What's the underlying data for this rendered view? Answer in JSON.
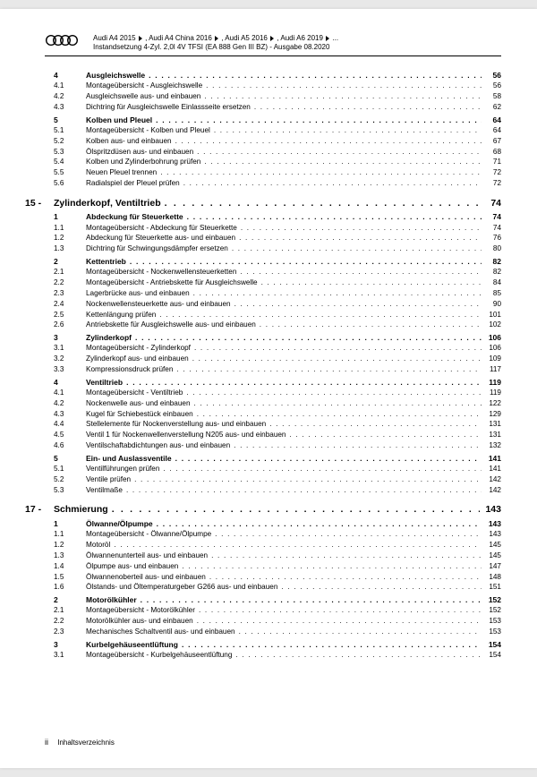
{
  "header": {
    "line1_parts": [
      "Audi A4 2015",
      "Audi A4 China 2016",
      "Audi A5 2016",
      "Audi A6 2019",
      "..."
    ],
    "line2": "Instandsetzung 4-Zyl. 2,0l 4V TFSI (EA 888 Gen III BZ) - Ausgabe 08.2020"
  },
  "entries": [
    {
      "lvl": "section",
      "num": "4",
      "title": "Ausgleichswelle",
      "pg": "56"
    },
    {
      "lvl": "sub",
      "num": "4.1",
      "title": "Montageübersicht - Ausgleichswelle",
      "pg": "56"
    },
    {
      "lvl": "sub",
      "num": "4.2",
      "title": "Ausgleichswelle aus- und einbauen",
      "pg": "58"
    },
    {
      "lvl": "sub",
      "num": "4.3",
      "title": "Dichtring für Ausgleichswelle Einlassseite ersetzen",
      "pg": "62"
    },
    {
      "lvl": "section",
      "num": "5",
      "title": "Kolben und Pleuel",
      "pg": "64"
    },
    {
      "lvl": "sub",
      "num": "5.1",
      "title": "Montageübersicht - Kolben und Pleuel",
      "pg": "64"
    },
    {
      "lvl": "sub",
      "num": "5.2",
      "title": "Kolben aus- und einbauen",
      "pg": "67"
    },
    {
      "lvl": "sub",
      "num": "5.3",
      "title": "Ölspritzdüsen aus- und einbauen",
      "pg": "68"
    },
    {
      "lvl": "sub",
      "num": "5.4",
      "title": "Kolben und Zylinderbohrung prüfen",
      "pg": "71"
    },
    {
      "lvl": "sub",
      "num": "5.5",
      "title": "Neuen Pleuel trennen",
      "pg": "72"
    },
    {
      "lvl": "sub",
      "num": "5.6",
      "title": "Radialspiel der Pleuel prüfen",
      "pg": "72"
    },
    {
      "lvl": "chapter",
      "num": "15 -",
      "title": "Zylinderkopf, Ventiltrieb",
      "pg": "74"
    },
    {
      "lvl": "section",
      "num": "1",
      "title": "Abdeckung für Steuerkette",
      "pg": "74"
    },
    {
      "lvl": "sub",
      "num": "1.1",
      "title": "Montageübersicht - Abdeckung für Steuerkette",
      "pg": "74"
    },
    {
      "lvl": "sub",
      "num": "1.2",
      "title": "Abdeckung für Steuerkette aus- und einbauen",
      "pg": "76"
    },
    {
      "lvl": "sub",
      "num": "1.3",
      "title": "Dichtring für Schwingungsdämpfer ersetzen",
      "pg": "80"
    },
    {
      "lvl": "section",
      "num": "2",
      "title": "Kettentrieb",
      "pg": "82"
    },
    {
      "lvl": "sub",
      "num": "2.1",
      "title": "Montageübersicht - Nockenwellensteuerketten",
      "pg": "82"
    },
    {
      "lvl": "sub",
      "num": "2.2",
      "title": "Montageübersicht - Antriebskette für Ausgleichswelle",
      "pg": "84"
    },
    {
      "lvl": "sub",
      "num": "2.3",
      "title": "Lagerbrücke aus- und einbauen",
      "pg": "85"
    },
    {
      "lvl": "sub",
      "num": "2.4",
      "title": "Nockenwellensteuerkette aus- und einbauen",
      "pg": "90"
    },
    {
      "lvl": "sub",
      "num": "2.5",
      "title": "Kettenlängung prüfen",
      "pg": "101"
    },
    {
      "lvl": "sub",
      "num": "2.6",
      "title": "Antriebskette für Ausgleichswelle aus- und einbauen",
      "pg": "102"
    },
    {
      "lvl": "section",
      "num": "3",
      "title": "Zylinderkopf",
      "pg": "106"
    },
    {
      "lvl": "sub",
      "num": "3.1",
      "title": "Montageübersicht - Zylinderkopf",
      "pg": "106"
    },
    {
      "lvl": "sub",
      "num": "3.2",
      "title": "Zylinderkopf aus- und einbauen",
      "pg": "109"
    },
    {
      "lvl": "sub",
      "num": "3.3",
      "title": "Kompressionsdruck prüfen",
      "pg": "117"
    },
    {
      "lvl": "section",
      "num": "4",
      "title": "Ventiltrieb",
      "pg": "119"
    },
    {
      "lvl": "sub",
      "num": "4.1",
      "title": "Montageübersicht - Ventiltrieb",
      "pg": "119"
    },
    {
      "lvl": "sub",
      "num": "4.2",
      "title": "Nockenwelle aus- und einbauen",
      "pg": "122"
    },
    {
      "lvl": "sub",
      "num": "4.3",
      "title": "Kugel für Schiebestück einbauen",
      "pg": "129"
    },
    {
      "lvl": "sub",
      "num": "4.4",
      "title": "Stellelemente für Nockenverstellung aus- und einbauen",
      "pg": "131"
    },
    {
      "lvl": "sub",
      "num": "4.5",
      "title": "Ventil 1 für Nockenwellenverstellung N205 aus- und einbauen",
      "pg": "131"
    },
    {
      "lvl": "sub",
      "num": "4.6",
      "title": "Ventilschaftabdichtungen aus- und einbauen",
      "pg": "132"
    },
    {
      "lvl": "section",
      "num": "5",
      "title": "Ein- und Auslassventile",
      "pg": "141"
    },
    {
      "lvl": "sub",
      "num": "5.1",
      "title": "Ventilführungen prüfen",
      "pg": "141"
    },
    {
      "lvl": "sub",
      "num": "5.2",
      "title": "Ventile prüfen",
      "pg": "142"
    },
    {
      "lvl": "sub",
      "num": "5.3",
      "title": "Ventilmaße",
      "pg": "142"
    },
    {
      "lvl": "chapter",
      "num": "17 -",
      "title": "Schmierung",
      "pg": "143"
    },
    {
      "lvl": "section",
      "num": "1",
      "title": "Ölwanne/Ölpumpe",
      "pg": "143"
    },
    {
      "lvl": "sub",
      "num": "1.1",
      "title": "Montageübersicht - Ölwanne/Ölpumpe",
      "pg": "143"
    },
    {
      "lvl": "sub",
      "num": "1.2",
      "title": "Motoröl",
      "pg": "145"
    },
    {
      "lvl": "sub",
      "num": "1.3",
      "title": "Ölwannenunterteil aus- und einbauen",
      "pg": "145"
    },
    {
      "lvl": "sub",
      "num": "1.4",
      "title": "Ölpumpe aus- und einbauen",
      "pg": "147"
    },
    {
      "lvl": "sub",
      "num": "1.5",
      "title": "Ölwannenoberteil aus- und einbauen",
      "pg": "148"
    },
    {
      "lvl": "sub",
      "num": "1.6",
      "title": "Ölstands- und Öltemperaturgeber G266 aus- und einbauen",
      "pg": "151"
    },
    {
      "lvl": "section",
      "num": "2",
      "title": "Motorölkühler",
      "pg": "152"
    },
    {
      "lvl": "sub",
      "num": "2.1",
      "title": "Montageübersicht - Motorölkühler",
      "pg": "152"
    },
    {
      "lvl": "sub",
      "num": "2.2",
      "title": "Motorölkühler aus- und einbauen",
      "pg": "153"
    },
    {
      "lvl": "sub",
      "num": "2.3",
      "title": "Mechanisches Schaltventil aus- und einbauen",
      "pg": "153"
    },
    {
      "lvl": "section",
      "num": "3",
      "title": "Kurbelgehäuseentlüftung",
      "pg": "154"
    },
    {
      "lvl": "sub",
      "num": "3.1",
      "title": "Montageübersicht - Kurbelgehäuseentlüftung",
      "pg": "154"
    }
  ],
  "footer": {
    "page": "ii",
    "label": "Inhaltsverzeichnis"
  }
}
